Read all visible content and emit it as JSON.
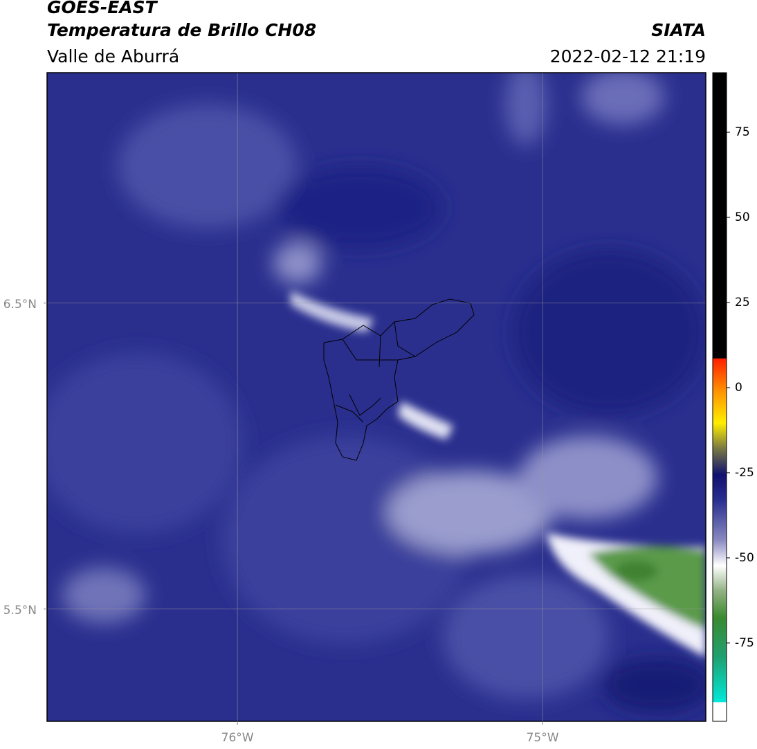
{
  "header": {
    "title": "GOES-EAST",
    "subtitle": "Temperatura de Brillo CH08",
    "location": "Valle de Aburrá",
    "source": "SIATA",
    "datetime": "2022-02-12 21:19"
  },
  "map": {
    "xlim": [
      -76.624,
      -74.465
    ],
    "ylim": [
      5.133,
      7.253
    ],
    "xticks": [
      {
        "value": -76,
        "label": "76°W"
      },
      {
        "value": -75,
        "label": "75°W"
      }
    ],
    "yticks": [
      {
        "value": 6.5,
        "label": "6.5°N"
      },
      {
        "value": 5.5,
        "label": "5.5°N"
      }
    ]
  },
  "colorbar": {
    "lim": [
      -98,
      92.5
    ],
    "ticks": [
      75,
      50,
      25,
      0,
      -25,
      -50,
      -75
    ]
  }
}
